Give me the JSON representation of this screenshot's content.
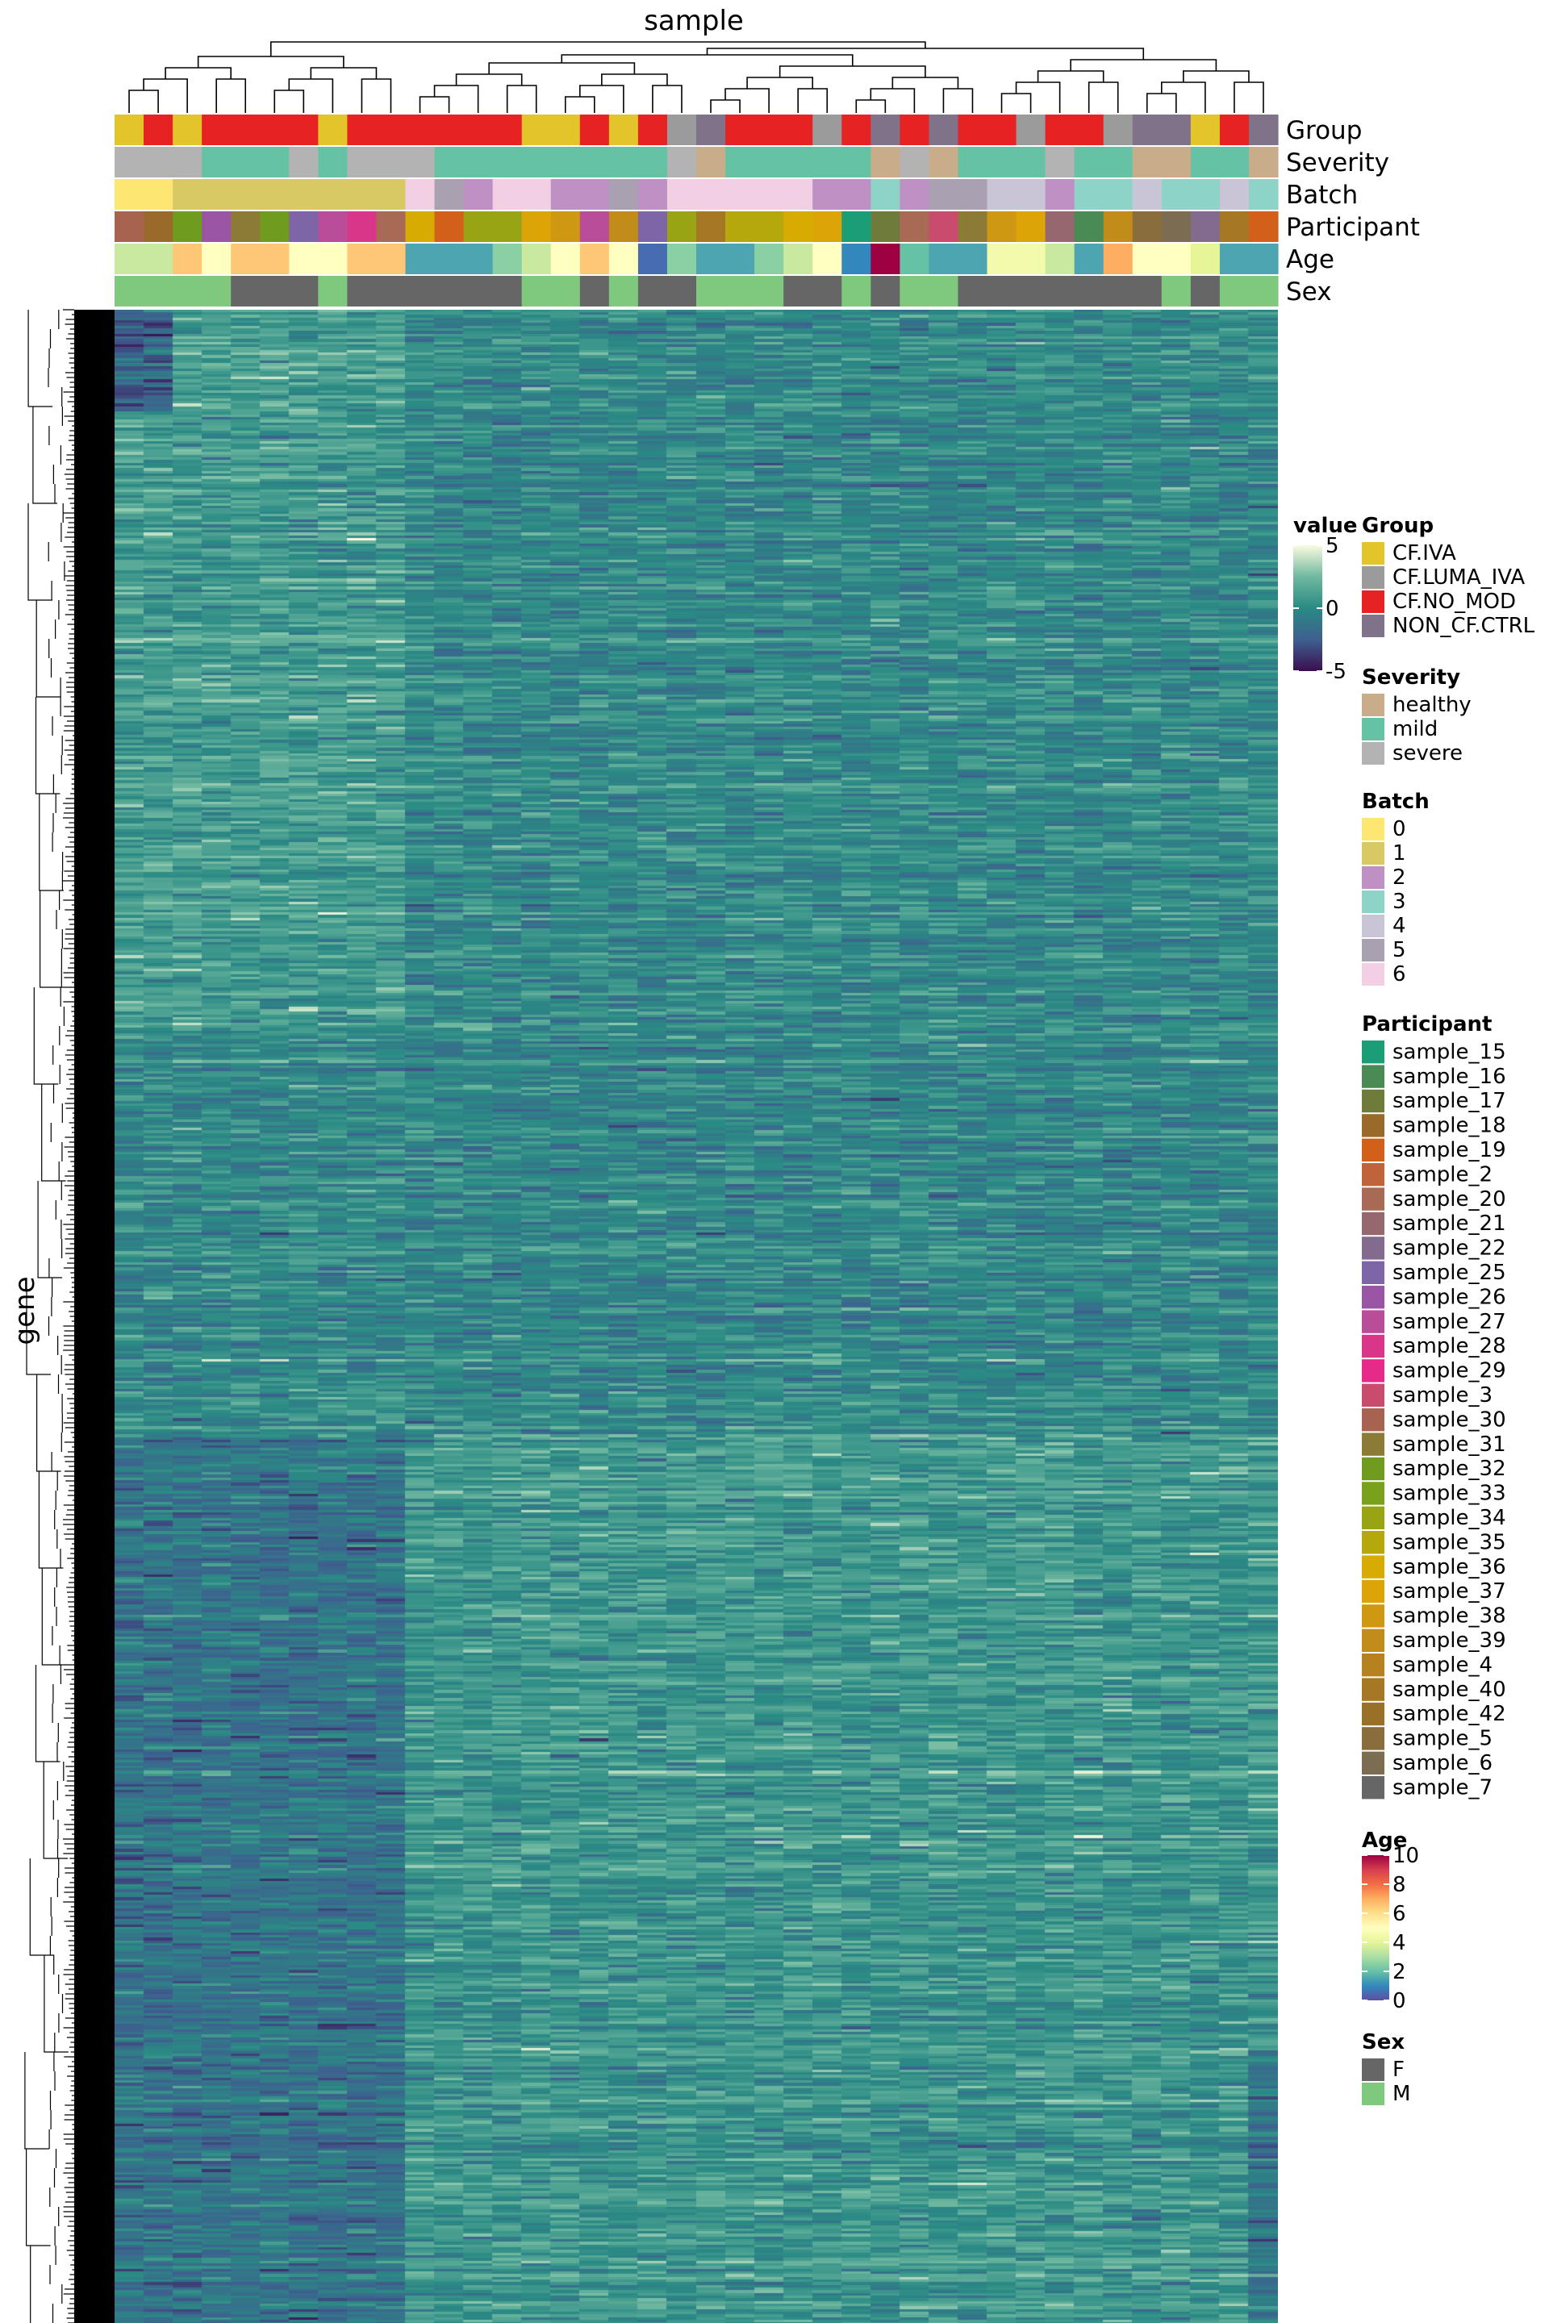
{
  "chart_data": {
    "type": "heatmap",
    "title": "sample",
    "xlabel": "sample",
    "ylabel": "gene",
    "n_samples": 40,
    "row_labels_note": "gene row labels rendered as a solid black block of overlapping text",
    "value_scale": {
      "title": "value",
      "min": -5,
      "max": 5,
      "ticks": [
        5,
        0,
        -5
      ],
      "colors": [
        "#3b0f4f",
        "#3e5f8f",
        "#2a8a84",
        "#6fb8a0",
        "#fbfbe0"
      ]
    },
    "annotation_tracks": [
      "Group",
      "Severity",
      "Batch",
      "Participant",
      "Age",
      "Sex"
    ],
    "legends": {
      "group": {
        "title": "Group",
        "items": [
          {
            "label": "CF.IVA",
            "color": "#e3c42a"
          },
          {
            "label": "CF.LUMA_IVA",
            "color": "#9b9b9b"
          },
          {
            "label": "CF.NO_MOD",
            "color": "#e62222"
          },
          {
            "label": "NON_CF.CTRL",
            "color": "#7f7289"
          }
        ]
      },
      "severity": {
        "title": "Severity",
        "items": [
          {
            "label": "healthy",
            "color": "#c8ad88"
          },
          {
            "label": "mild",
            "color": "#66c2a5"
          },
          {
            "label": "severe",
            "color": "#b3b3b3"
          }
        ]
      },
      "batch": {
        "title": "Batch",
        "items": [
          {
            "label": "0",
            "color": "#fde772"
          },
          {
            "label": "1",
            "color": "#d8c965"
          },
          {
            "label": "2",
            "color": "#be90c4"
          },
          {
            "label": "3",
            "color": "#8dd3c7"
          },
          {
            "label": "4",
            "color": "#c9c5d6"
          },
          {
            "label": "5",
            "color": "#a9a0b1"
          },
          {
            "label": "6",
            "color": "#f2cfe3"
          }
        ]
      },
      "participant": {
        "title": "Participant",
        "items": [
          {
            "label": "sample_15",
            "color": "#1b9e77"
          },
          {
            "label": "sample_16",
            "color": "#4a8a55"
          },
          {
            "label": "sample_17",
            "color": "#6e7b3a"
          },
          {
            "label": "sample_18",
            "color": "#9a6a2a"
          },
          {
            "label": "sample_19",
            "color": "#d2601a"
          },
          {
            "label": "sample_2",
            "color": "#c0623a"
          },
          {
            "label": "sample_20",
            "color": "#a96a55"
          },
          {
            "label": "sample_21",
            "color": "#956870"
          },
          {
            "label": "sample_22",
            "color": "#836b8e"
          },
          {
            "label": "sample_25",
            "color": "#7d65a8"
          },
          {
            "label": "sample_26",
            "color": "#9b55a5"
          },
          {
            "label": "sample_27",
            "color": "#b94d9a"
          },
          {
            "label": "sample_28",
            "color": "#d9368a"
          },
          {
            "label": "sample_29",
            "color": "#e7298a"
          },
          {
            "label": "sample_3",
            "color": "#c94b6e"
          },
          {
            "label": "sample_30",
            "color": "#a76350"
          },
          {
            "label": "sample_31",
            "color": "#8c7a37"
          },
          {
            "label": "sample_32",
            "color": "#6f9b1f"
          },
          {
            "label": "sample_33",
            "color": "#79a11b"
          },
          {
            "label": "sample_34",
            "color": "#98a414"
          },
          {
            "label": "sample_35",
            "color": "#b5a80c"
          },
          {
            "label": "sample_36",
            "color": "#d7ab02"
          },
          {
            "label": "sample_37",
            "color": "#dda408"
          },
          {
            "label": "sample_38",
            "color": "#cf9813"
          },
          {
            "label": "sample_39",
            "color": "#c28c1a"
          },
          {
            "label": "sample_4",
            "color": "#b6821f"
          },
          {
            "label": "sample_40",
            "color": "#a77824"
          },
          {
            "label": "sample_42",
            "color": "#987028"
          },
          {
            "label": "sample_5",
            "color": "#8a6d3c"
          },
          {
            "label": "sample_6",
            "color": "#7c6c52"
          },
          {
            "label": "sample_7",
            "color": "#666666"
          }
        ]
      },
      "age": {
        "title": "Age",
        "min": 0,
        "max": 10,
        "ticks": [
          10,
          8,
          6,
          4,
          2,
          0
        ],
        "colors": [
          "#5e4fa2",
          "#3288bd",
          "#66c2a5",
          "#abdda4",
          "#e6f598",
          "#ffffbf",
          "#fee08b",
          "#fdae61",
          "#f46d43",
          "#d53e4f",
          "#9e0142"
        ]
      },
      "sex": {
        "title": "Sex",
        "items": [
          {
            "label": "F",
            "color": "#666666"
          },
          {
            "label": "M",
            "color": "#7fc97f"
          }
        ]
      }
    },
    "group_track": [
      "CF.IVA",
      "CF.NO_MOD",
      "CF.IVA",
      "CF.NO_MOD",
      "CF.NO_MOD",
      "CF.NO_MOD",
      "CF.NO_MOD",
      "CF.IVA",
      "CF.NO_MOD",
      "CF.NO_MOD",
      "CF.NO_MOD",
      "CF.NO_MOD",
      "CF.NO_MOD",
      "CF.NO_MOD",
      "CF.IVA",
      "CF.IVA",
      "CF.NO_MOD",
      "CF.IVA",
      "CF.NO_MOD",
      "CF.LUMA_IVA",
      "NON_CF.CTRL",
      "CF.NO_MOD",
      "CF.NO_MOD",
      "CF.NO_MOD",
      "CF.LUMA_IVA",
      "CF.NO_MOD",
      "NON_CF.CTRL",
      "CF.NO_MOD",
      "NON_CF.CTRL",
      "CF.NO_MOD",
      "CF.NO_MOD",
      "CF.LUMA_IVA",
      "CF.NO_MOD",
      "CF.NO_MOD",
      "CF.LUMA_IVA",
      "NON_CF.CTRL",
      "NON_CF.CTRL",
      "CF.IVA",
      "CF.NO_MOD",
      "NON_CF.CTRL"
    ],
    "severity_track": [
      "severe",
      "severe",
      "severe",
      "mild",
      "mild",
      "mild",
      "severe",
      "mild",
      "severe",
      "severe",
      "severe",
      "mild",
      "mild",
      "mild",
      "mild",
      "mild",
      "mild",
      "mild",
      "mild",
      "severe",
      "healthy",
      "mild",
      "mild",
      "mild",
      "mild",
      "mild",
      "healthy",
      "severe",
      "healthy",
      "mild",
      "mild",
      "mild",
      "severe",
      "mild",
      "mild",
      "healthy",
      "healthy",
      "mild",
      "mild",
      "healthy"
    ],
    "batch_track": [
      "0",
      "0",
      "1",
      "1",
      "1",
      "1",
      "1",
      "1",
      "1",
      "1",
      "6",
      "5",
      "2",
      "6",
      "6",
      "2",
      "2",
      "5",
      "2",
      "6",
      "6",
      "6",
      "6",
      "6",
      "2",
      "2",
      "3",
      "2",
      "5",
      "5",
      "4",
      "4",
      "2",
      "3",
      "3",
      "4",
      "3",
      "3",
      "4",
      "3"
    ],
    "participant_track": [
      "sample_30",
      "sample_18",
      "sample_32",
      "sample_26",
      "sample_31",
      "sample_32",
      "sample_25",
      "sample_27",
      "sample_28",
      "sample_20",
      "sample_36",
      "sample_19",
      "sample_34",
      "sample_34",
      "sample_37",
      "sample_38",
      "sample_27",
      "sample_39",
      "sample_25",
      "sample_34",
      "sample_40",
      "sample_35",
      "sample_35",
      "sample_36",
      "sample_37",
      "sample_15",
      "sample_17",
      "sample_20",
      "sample_3",
      "sample_31",
      "sample_38",
      "sample_37",
      "sample_21",
      "sample_16",
      "sample_39",
      "sample_5",
      "sample_6",
      "sample_22",
      "sample_40",
      "sample_19"
    ],
    "age_track": [
      3.5,
      3.5,
      6.5,
      5,
      6.5,
      6.5,
      5,
      5,
      6.5,
      6.5,
      1.5,
      1.5,
      1.5,
      2.5,
      3.5,
      5,
      6.5,
      5,
      0.5,
      2.5,
      1.5,
      1.5,
      2.5,
      3.5,
      5,
      1,
      10,
      2,
      1.5,
      1.5,
      4.5,
      4.5,
      3.5,
      1.5,
      7,
      5,
      5,
      4,
      1.5,
      1.5
    ],
    "sex_track": [
      "M",
      "M",
      "M",
      "M",
      "F",
      "F",
      "F",
      "M",
      "F",
      "F",
      "F",
      "F",
      "F",
      "F",
      "M",
      "M",
      "F",
      "M",
      "F",
      "F",
      "M",
      "M",
      "M",
      "F",
      "F",
      "M",
      "F",
      "M",
      "M",
      "F",
      "F",
      "F",
      "F",
      "F",
      "F",
      "F",
      "M",
      "F",
      "M",
      "M"
    ],
    "column_mean_profile_low_to_high_row": "columns 1-10 darker (~-1.5) in lower half of rows, columns 11-40 lighter (~+0.5); column 40 dark streaks near bottom"
  }
}
